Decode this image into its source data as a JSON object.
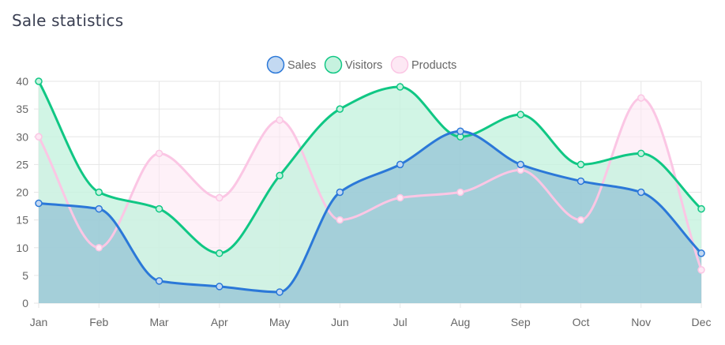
{
  "card": {
    "title": "Sale statistics"
  },
  "chart_data": {
    "type": "area",
    "categories": [
      "Jan",
      "Feb",
      "Mar",
      "Apr",
      "May",
      "Jun",
      "Jul",
      "Aug",
      "Sep",
      "Oct",
      "Nov",
      "Dec"
    ],
    "ylim": [
      0,
      40
    ],
    "yticks": [
      0,
      5,
      10,
      15,
      20,
      25,
      30,
      35,
      40
    ],
    "grid": true,
    "legend_position": "top-center",
    "series": [
      {
        "name": "Sales",
        "values": [
          18,
          17,
          4,
          3,
          2,
          20,
          25,
          31,
          25,
          22,
          20,
          9
        ],
        "stroke": "#2b78d8",
        "fill": "#94c3d6",
        "fill_opacity": 0.75,
        "point_fill": "#c3d9f2"
      },
      {
        "name": "Visitors",
        "values": [
          40,
          20,
          17,
          9,
          23,
          35,
          39,
          30,
          34,
          25,
          27,
          17
        ],
        "stroke": "#10c784",
        "fill": "#c6f2df",
        "fill_opacity": 0.8,
        "point_fill": "#c6f2df"
      },
      {
        "name": "Products",
        "values": [
          30,
          10,
          27,
          19,
          33,
          15,
          19,
          20,
          24,
          15,
          37,
          6
        ],
        "stroke": "#fbc6e4",
        "fill": "#fde8f4",
        "fill_opacity": 0.6,
        "point_fill": "#fde8f4"
      }
    ]
  }
}
